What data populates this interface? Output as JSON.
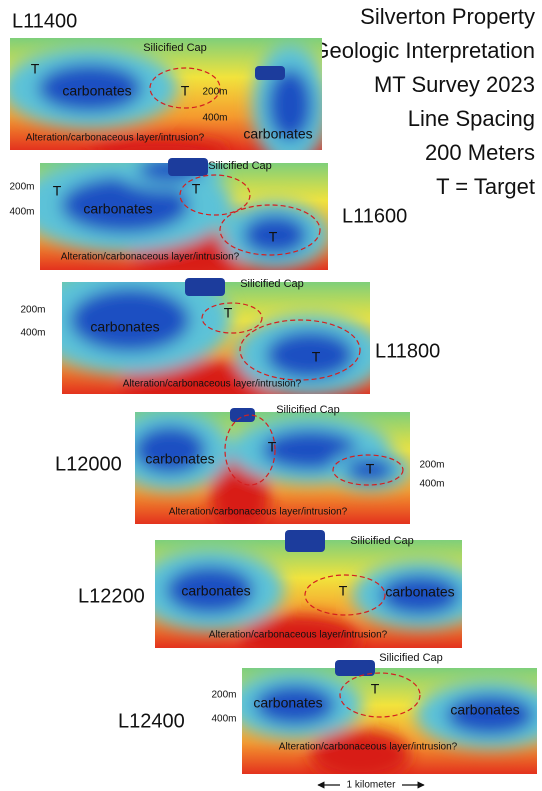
{
  "title_lines": [
    "Silverton Property",
    "Geologic Interpretation",
    "MT Survey 2023",
    "Line Spacing",
    "200 Meters",
    "T = Target"
  ],
  "sections": [
    {
      "line": "L11400",
      "cap": "Silicified Cap",
      "alteration": "Alteration/carbonaceous layer/intrusion?",
      "carbonates": [
        "carbonates",
        "carbonates"
      ],
      "targets": [
        "T",
        "T"
      ],
      "depths": [
        "200m",
        "400m"
      ]
    },
    {
      "line": "L11600",
      "cap": "Silicified Cap",
      "alteration": "Alteration/carbonaceous layer/intrusion?",
      "carbonates": [
        "carbonates"
      ],
      "targets": [
        "T",
        "T",
        "T"
      ],
      "depths": [
        "200m",
        "400m"
      ]
    },
    {
      "line": "L11800",
      "cap": "Silicified Cap",
      "alteration": "Alteration/carbonaceous layer/intrusion?",
      "carbonates": [
        "carbonates"
      ],
      "targets": [
        "T",
        "T"
      ],
      "depths": [
        "200m",
        "400m"
      ]
    },
    {
      "line": "L12000",
      "cap": "Silicified Cap",
      "alteration": "Alteration/carbonaceous layer/intrusion?",
      "carbonates": [
        "carbonates"
      ],
      "targets": [
        "T",
        "T"
      ],
      "depths": [
        "200m",
        "400m"
      ]
    },
    {
      "line": "L12200",
      "cap": "Silicified Cap",
      "alteration": "Alteration/carbonaceous layer/intrusion?",
      "carbonates": [
        "carbonates",
        "carbonates"
      ],
      "targets": [
        "T"
      ]
    },
    {
      "line": "L12400",
      "cap": "Silicified Cap",
      "alteration": "Alteration/carbonaceous layer/intrusion?",
      "carbonates": [
        "carbonates",
        "carbonates"
      ],
      "targets": [
        "T"
      ],
      "depths": [
        "200m",
        "400m"
      ]
    }
  ],
  "scale_bar": "1 kilometer"
}
